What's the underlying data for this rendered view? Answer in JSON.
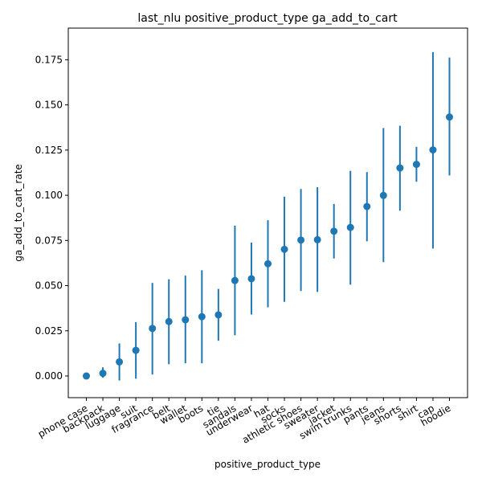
{
  "chart_data": {
    "type": "scatter",
    "title": "last_nlu positive_product_type ga_add_to_cart",
    "xlabel": "positive_product_type",
    "ylabel": "ga_add_to_cart_rate",
    "ylim": [
      -0.012,
      0.1925
    ],
    "yticks": [
      "0.000",
      "0.025",
      "0.050",
      "0.075",
      "0.100",
      "0.125",
      "0.150",
      "0.175"
    ],
    "grid": false,
    "series_color": "#1f77b4",
    "categories": [
      "phone case",
      "backpack",
      "luggage",
      "suit",
      "fragrance",
      "belt",
      "wallet",
      "boots",
      "tie",
      "sandals",
      "underwear",
      "hat",
      "socks",
      "athletic shoes",
      "sweater",
      "jacket",
      "swim trunks",
      "pants",
      "jeans",
      "shorts",
      "shirt",
      "cap",
      "hoodie"
    ],
    "values": [
      0.0,
      0.0015,
      0.0078,
      0.0142,
      0.0263,
      0.0301,
      0.0311,
      0.0328,
      0.0338,
      0.0528,
      0.0538,
      0.0621,
      0.0701,
      0.0752,
      0.0754,
      0.0801,
      0.0822,
      0.0938,
      0.0999,
      0.1151,
      0.1171,
      0.1251,
      0.1433
    ],
    "ci_low": [
      0.0,
      -0.001,
      -0.0025,
      -0.0015,
      0.0008,
      0.0065,
      0.007,
      0.007,
      0.0195,
      0.0225,
      0.034,
      0.038,
      0.041,
      0.047,
      0.0465,
      0.065,
      0.0505,
      0.0745,
      0.063,
      0.0915,
      0.1075,
      0.0705,
      0.111
    ],
    "ci_high": [
      0.0,
      0.0048,
      0.018,
      0.0298,
      0.0515,
      0.0535,
      0.0555,
      0.0585,
      0.0482,
      0.0832,
      0.0738,
      0.0862,
      0.0992,
      0.1035,
      0.1045,
      0.0952,
      0.1135,
      0.1128,
      0.1372,
      0.1385,
      0.1268,
      0.1792,
      0.1762
    ]
  }
}
